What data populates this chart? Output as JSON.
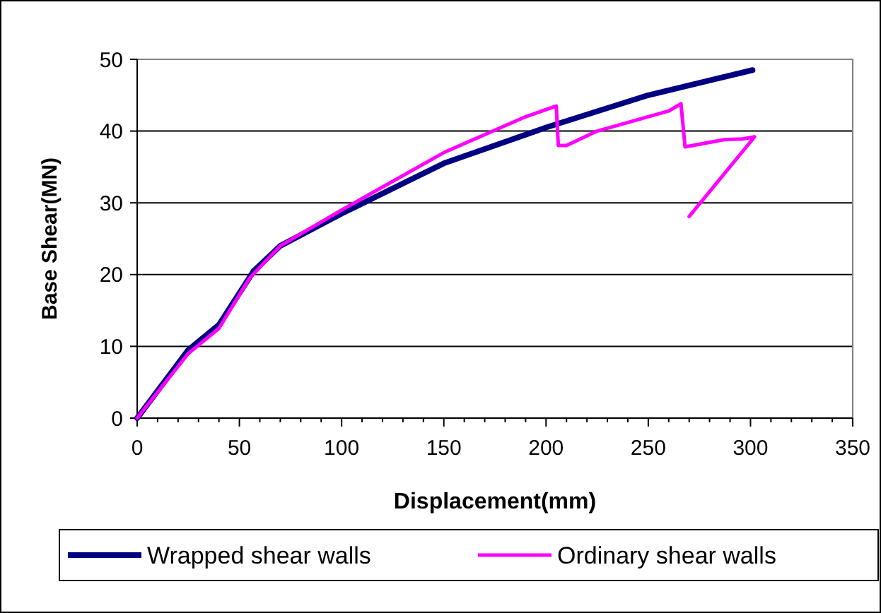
{
  "chart_data": {
    "type": "line",
    "xlabel": "Displacement(mm)",
    "ylabel": "Base Shear(MN)",
    "xlim": [
      0,
      350
    ],
    "xticks": [
      0,
      50,
      100,
      150,
      200,
      250,
      300,
      350
    ],
    "ylim": [
      0,
      50
    ],
    "yticks": [
      0,
      10,
      20,
      30,
      40,
      50
    ],
    "grid": "y",
    "legend": "bottom",
    "marker": "none",
    "line_style": "solid",
    "series": [
      {
        "name": "Wrapped shear walls",
        "color": "#000080",
        "x": [
          0,
          25,
          40,
          57,
          70,
          100,
          150,
          200,
          250,
          301
        ],
        "values": [
          0,
          9.5,
          13,
          20.5,
          24,
          28.5,
          35.5,
          40.5,
          45,
          48.5
        ]
      },
      {
        "name": "Ordinary shear walls",
        "color": "#ff00ff",
        "x": [
          0,
          25,
          40,
          55,
          70,
          100,
          150,
          190,
          205,
          206,
          210,
          225,
          260,
          266,
          268,
          287,
          296,
          302,
          270
        ],
        "values": [
          0,
          9,
          12.5,
          19.5,
          24,
          29,
          37,
          42,
          43.5,
          38,
          38,
          40,
          42.8,
          43.8,
          37.8,
          38.8,
          38.9,
          39.2,
          28.1
        ]
      }
    ]
  }
}
